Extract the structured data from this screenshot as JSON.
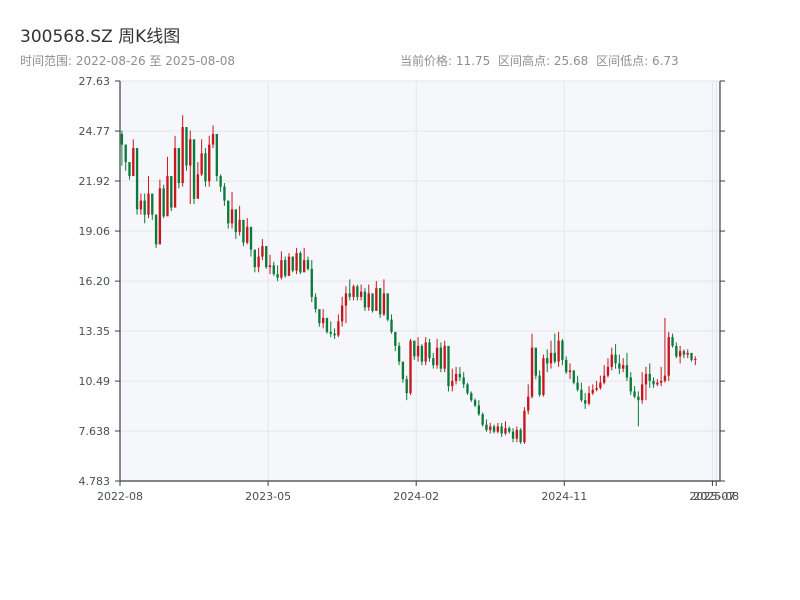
{
  "title": "300568.SZ 周K线图",
  "subtitle": "时间范围: 2022-08-26 至 2025-08-08",
  "stats": {
    "current": "当前价格: 11.75",
    "high": "区间高点: 25.68",
    "low": "区间低点: 6.73"
  },
  "colors": {
    "up": "#c8161d",
    "down": "#0b7a3a",
    "plot_bg": "#f5f7fa",
    "grid": "#e3e6ea",
    "axis": "#3a3f44"
  },
  "chart_data": {
    "type": "candlestick",
    "yticks": [
      "27.63",
      "24.77",
      "21.92",
      "19.06",
      "16.20",
      "13.35",
      "10.49",
      "7.638",
      "4.783"
    ],
    "ylim": [
      4.783,
      27.63
    ],
    "xticks": [
      {
        "label": "2022-08",
        "week": 0
      },
      {
        "label": "2023-05",
        "week": 39
      },
      {
        "label": "2024-02",
        "week": 78
      },
      {
        "label": "2024-11",
        "week": 117
      },
      {
        "label": "2025-07",
        "week": 156
      },
      {
        "label": "2025-08",
        "week": 157
      }
    ],
    "xlim": [
      0,
      158
    ],
    "grid": true,
    "closes": [
      24.0,
      23.0,
      22.2,
      23.8,
      20.3,
      20.8,
      20.0,
      21.2,
      20.0,
      18.3,
      21.5,
      19.9,
      22.2,
      20.4,
      23.8,
      21.8,
      25.0,
      22.8,
      24.3,
      20.9,
      22.3,
      23.5,
      21.9,
      24.0,
      24.6,
      22.2,
      21.6,
      20.8,
      19.5,
      20.3,
      19.0,
      19.7,
      18.4,
      19.3,
      18.0,
      17.0,
      17.6,
      18.2,
      17.0,
      17.1,
      16.6,
      16.4,
      17.4,
      16.5,
      17.6,
      16.8,
      17.8,
      16.7,
      17.4,
      16.9,
      15.3,
      14.6,
      13.8,
      14.1,
      13.3,
      13.2,
      13.1,
      13.9,
      14.8,
      15.5,
      15.3,
      15.9,
      15.3,
      15.6,
      14.7,
      15.5,
      14.5,
      15.8,
      14.3,
      15.5,
      14.0,
      13.3,
      12.5,
      11.6,
      10.6,
      9.8,
      12.8,
      11.9,
      12.5,
      11.6,
      12.7,
      11.8,
      11.4,
      12.4,
      11.2,
      12.5,
      10.2,
      10.5,
      10.9,
      10.7,
      10.3,
      9.8,
      9.4,
      9.1,
      8.6,
      8.0,
      7.7,
      7.9,
      7.6,
      7.9,
      7.5,
      7.8,
      7.6,
      7.2,
      7.7,
      7.0,
      8.8,
      9.6,
      12.4,
      10.8,
      9.7,
      11.8,
      11.5,
      12.1,
      11.6,
      12.8,
      11.7,
      11.0,
      11.1,
      10.4,
      10.0,
      9.4,
      9.2,
      9.8,
      10.0,
      10.1,
      10.4,
      10.8,
      11.3,
      12.0,
      11.5,
      11.2,
      11.4,
      10.7,
      9.9,
      9.6,
      9.4,
      10.3,
      10.9,
      10.5,
      10.3,
      10.4,
      10.5,
      10.8,
      13.0,
      12.5,
      11.9,
      12.2,
      12.0,
      12.1,
      11.7,
      11.75
    ],
    "highs": [
      24.8,
      23.7,
      22.8,
      24.3,
      21.3,
      21.2,
      21.2,
      22.2,
      20.7,
      19.3,
      22.0,
      21.7,
      23.3,
      21.0,
      24.5,
      22.5,
      25.68,
      23.5,
      24.8,
      22.3,
      23.0,
      24.3,
      23.8,
      24.5,
      25.1,
      24.2,
      22.3,
      21.8,
      20.7,
      21.3,
      19.6,
      20.5,
      19.2,
      19.8,
      18.6,
      17.8,
      18.1,
      18.6,
      17.6,
      17.7,
      17.3,
      17.1,
      17.9,
      17.6,
      17.8,
      17.6,
      18.1,
      17.9,
      18.1,
      17.6,
      17.4,
      15.5,
      14.5,
      14.6,
      13.7,
      13.9,
      13.5,
      14.3,
      15.3,
      15.9,
      16.3,
      16.0,
      16.0,
      16.0,
      15.8,
      16.0,
      15.1,
      16.2,
      15.5,
      16.3,
      15.4,
      14.3,
      13.3,
      12.7,
      11.6,
      10.8,
      12.9,
      12.4,
      13.0,
      12.6,
      13.0,
      12.9,
      12.1,
      12.9,
      12.7,
      12.8,
      11.0,
      11.2,
      11.3,
      11.3,
      11.0,
      10.4,
      9.9,
      9.5,
      9.4,
      8.7,
      8.3,
      8.1,
      8.0,
      8.1,
      8.1,
      8.2,
      7.9,
      7.8,
      7.9,
      7.8,
      9.0,
      10.3,
      13.2,
      11.9,
      11.1,
      12.0,
      12.3,
      12.8,
      13.2,
      13.3,
      12.9,
      11.9,
      11.5,
      11.1,
      10.8,
      10.4,
      9.8,
      10.2,
      10.3,
      10.5,
      10.8,
      11.4,
      11.8,
      12.4,
      12.6,
      12.0,
      11.8,
      12.1,
      11.0,
      10.2,
      9.9,
      11.0,
      11.3,
      11.5,
      10.7,
      10.6,
      11.3,
      14.1,
      13.3,
      13.2,
      12.7,
      12.5,
      12.3,
      12.3,
      12.1,
      11.9
    ],
    "lows": [
      22.8,
      22.5,
      22.0,
      22.5,
      20.0,
      20.0,
      19.5,
      19.8,
      19.7,
      18.1,
      18.3,
      19.8,
      20.2,
      20.2,
      20.8,
      21.5,
      21.6,
      22.5,
      20.6,
      20.6,
      21.3,
      22.2,
      21.6,
      21.6,
      23.8,
      21.9,
      21.3,
      20.5,
      19.2,
      19.2,
      18.6,
      18.8,
      18.2,
      18.3,
      17.6,
      16.7,
      16.7,
      17.4,
      16.9,
      16.6,
      16.5,
      16.2,
      16.3,
      16.4,
      16.5,
      16.7,
      16.6,
      16.6,
      16.8,
      16.8,
      15.0,
      14.4,
      13.6,
      13.5,
      13.2,
      13.0,
      12.9,
      13.0,
      13.6,
      13.8,
      15.1,
      15.1,
      15.1,
      15.1,
      14.5,
      14.5,
      14.4,
      14.5,
      14.1,
      14.2,
      13.9,
      13.2,
      12.2,
      11.4,
      10.4,
      9.4,
      9.7,
      11.7,
      11.6,
      11.4,
      11.4,
      11.6,
      11.2,
      11.2,
      11.0,
      11.0,
      9.9,
      9.9,
      10.3,
      10.5,
      10.1,
      9.7,
      9.3,
      9.0,
      8.5,
      7.9,
      7.6,
      7.5,
      7.5,
      7.5,
      7.3,
      7.4,
      7.5,
      7.0,
      7.0,
      6.9,
      6.9,
      8.6,
      9.5,
      10.6,
      9.6,
      9.6,
      11.0,
      11.2,
      11.5,
      11.3,
      11.4,
      10.9,
      10.6,
      10.3,
      9.9,
      9.3,
      8.9,
      9.1,
      9.7,
      9.9,
      10.0,
      10.3,
      10.7,
      11.1,
      11.2,
      10.9,
      11.0,
      10.5,
      9.7,
      9.5,
      7.9,
      9.2,
      9.4,
      10.1,
      10.1,
      10.2,
      10.2,
      10.4,
      10.5,
      12.4,
      11.8,
      11.5,
      11.8,
      11.8,
      11.6,
      11.4
    ]
  }
}
